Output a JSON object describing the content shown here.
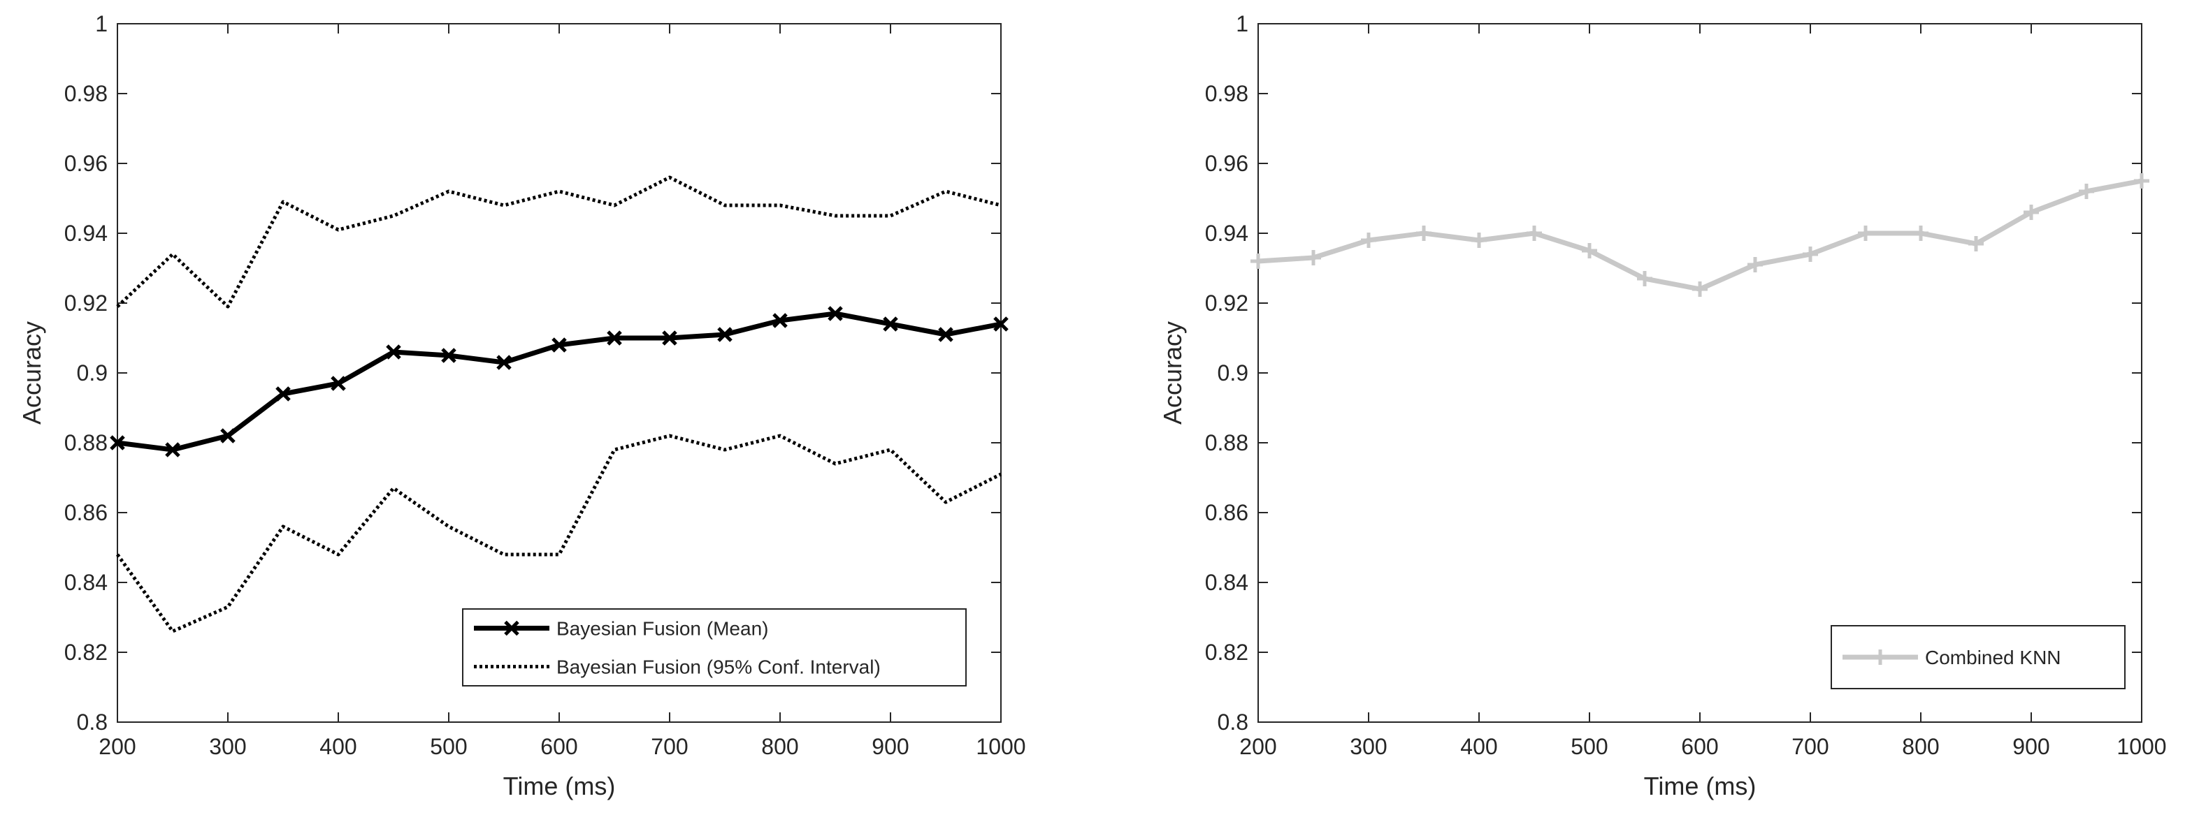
{
  "chart_data": [
    {
      "type": "line",
      "title": "",
      "xlabel": "Time (ms)",
      "ylabel": "Accuracy",
      "xlim": [
        200,
        1000
      ],
      "ylim": [
        0.8,
        1.0
      ],
      "xticks": [
        200,
        300,
        400,
        500,
        600,
        700,
        800,
        900,
        1000
      ],
      "yticks": [
        0.8,
        0.82,
        0.84,
        0.86,
        0.88,
        0.9,
        0.92,
        0.94,
        0.96,
        0.98,
        1
      ],
      "xtick_labels": [
        "200",
        "300",
        "400",
        "500",
        "600",
        "700",
        "800",
        "900",
        "1000"
      ],
      "ytick_labels": [
        "0.8",
        "0.82",
        "0.84",
        "0.86",
        "0.88",
        "0.9",
        "0.92",
        "0.94",
        "0.96",
        "0.98",
        "1"
      ],
      "grid": false,
      "legend_position": "bottom-right",
      "x": [
        200,
        250,
        300,
        350,
        400,
        450,
        500,
        550,
        600,
        650,
        700,
        750,
        800,
        850,
        900,
        950,
        1000
      ],
      "series": [
        {
          "name": "Bayesian Fusion (Mean)",
          "style": "solid-thick-x-markers",
          "color": "#000000",
          "values": [
            0.88,
            0.878,
            0.882,
            0.894,
            0.897,
            0.906,
            0.905,
            0.903,
            0.908,
            0.91,
            0.91,
            0.911,
            0.915,
            0.917,
            0.914,
            0.911,
            0.914
          ]
        },
        {
          "name": "Bayesian Fusion (95% Conf. Interval)",
          "style": "dotted",
          "color": "#000000",
          "values": [
            0.919,
            0.934,
            0.919,
            0.949,
            0.941,
            0.945,
            0.952,
            0.948,
            0.952,
            0.948,
            0.956,
            0.948,
            0.948,
            0.945,
            0.945,
            0.952,
            0.948
          ]
        },
        {
          "name": "Bayesian Fusion (95% Conf. Interval) lower",
          "legend": false,
          "style": "dotted",
          "color": "#000000",
          "values": [
            0.848,
            0.826,
            0.833,
            0.856,
            0.848,
            0.867,
            0.856,
            0.848,
            0.848,
            0.878,
            0.882,
            0.878,
            0.882,
            0.874,
            0.878,
            0.863,
            0.871
          ]
        }
      ]
    },
    {
      "type": "line",
      "title": "",
      "xlabel": "Time (ms)",
      "ylabel": "Accuracy",
      "xlim": [
        200,
        1000
      ],
      "ylim": [
        0.8,
        1.0
      ],
      "xticks": [
        200,
        300,
        400,
        500,
        600,
        700,
        800,
        900,
        1000
      ],
      "yticks": [
        0.8,
        0.82,
        0.84,
        0.86,
        0.88,
        0.9,
        0.92,
        0.94,
        0.96,
        0.98,
        1
      ],
      "xtick_labels": [
        "200",
        "300",
        "400",
        "500",
        "600",
        "700",
        "800",
        "900",
        "1000"
      ],
      "ytick_labels": [
        "0.8",
        "0.82",
        "0.84",
        "0.86",
        "0.88",
        "0.9",
        "0.92",
        "0.94",
        "0.96",
        "0.98",
        "1"
      ],
      "grid": false,
      "legend_position": "bottom-right",
      "x": [
        200,
        250,
        300,
        350,
        400,
        450,
        500,
        550,
        600,
        650,
        700,
        750,
        800,
        850,
        900,
        950,
        1000
      ],
      "series": [
        {
          "name": "Combined KNN",
          "style": "solid-thick-plus-markers",
          "color": "#c8c8c8",
          "values": [
            0.932,
            0.933,
            0.938,
            0.94,
            0.938,
            0.94,
            0.935,
            0.927,
            0.924,
            0.931,
            0.934,
            0.94,
            0.94,
            0.937,
            0.946,
            0.952,
            0.955
          ]
        }
      ]
    }
  ]
}
